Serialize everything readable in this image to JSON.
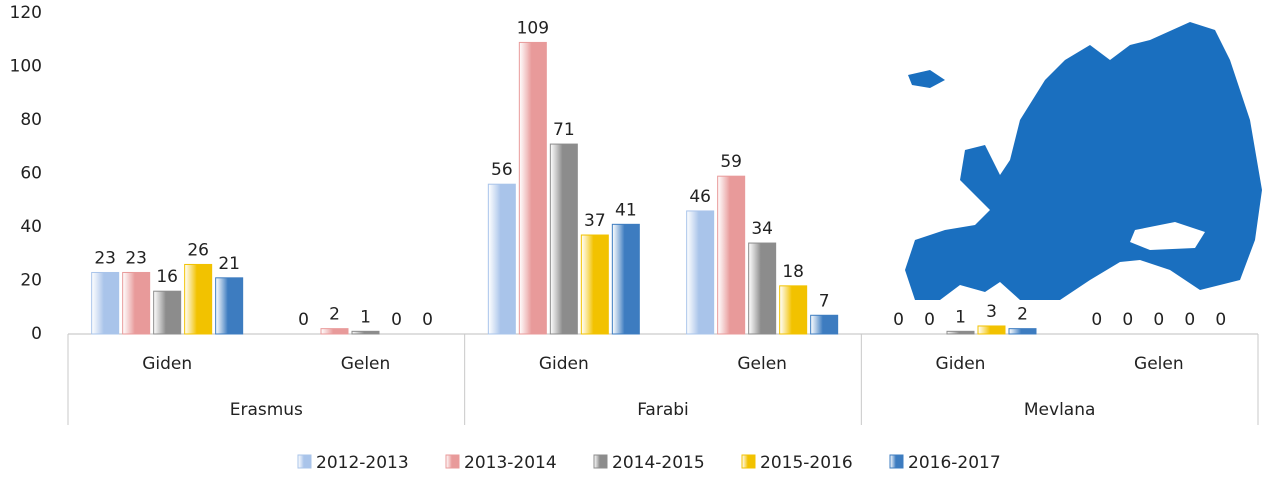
{
  "chart_data": {
    "type": "bar",
    "categories": [
      "Giden",
      "Gelen",
      "Giden",
      "Gelen",
      "Giden",
      "Gelen"
    ],
    "groups": [
      "Erasmus",
      "Farabi",
      "Mevlana"
    ],
    "series": [
      {
        "name": "2012-2013",
        "color": "#a9c4ea",
        "values": [
          23,
          0,
          56,
          46,
          0,
          0
        ]
      },
      {
        "name": "2013-2014",
        "color": "#e89a9a",
        "values": [
          23,
          2,
          109,
          59,
          0,
          0
        ]
      },
      {
        "name": "2014-2015",
        "color": "#8c8c8c",
        "values": [
          16,
          1,
          71,
          34,
          1,
          0
        ]
      },
      {
        "name": "2015-2016",
        "color": "#f2c200",
        "values": [
          26,
          0,
          37,
          18,
          3,
          0
        ]
      },
      {
        "name": "2016-2017",
        "color": "#3d7cc0",
        "values": [
          21,
          0,
          41,
          7,
          2,
          0
        ]
      }
    ],
    "ylim": [
      0,
      120
    ],
    "yticks": [
      0,
      20,
      40,
      60,
      80,
      100,
      120
    ],
    "legend": "bottom"
  }
}
